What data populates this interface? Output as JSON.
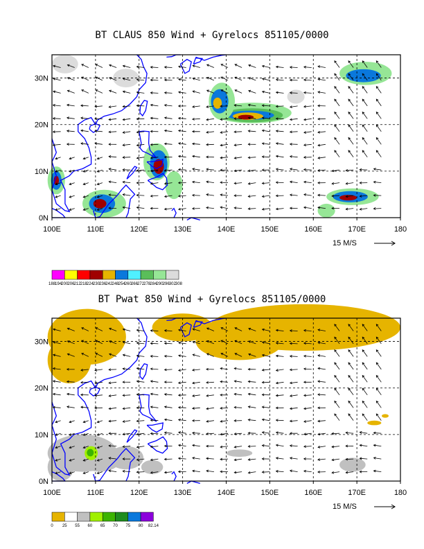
{
  "panels": [
    {
      "title": "BT CLAUS 850 Wind + Gyrelocs 851105/0000",
      "lon_labels": [
        "100E",
        "110E",
        "120E",
        "130E",
        "140E",
        "150E",
        "160E",
        "170E",
        "180"
      ],
      "lat_labels": [
        "0N",
        "10N",
        "20N",
        "30N"
      ],
      "ref_vector": "15 M/S",
      "colorbar": {
        "colors": [
          "#ff00ff",
          "#ffff00",
          "#ff0000",
          "#a00000",
          "#e6b400",
          "#0a78dc",
          "#50f0ff",
          "#5abe5a",
          "#96e696",
          "#dcdcdc"
        ],
        "labels": [
          "188",
          "194",
          "200",
          "206",
          "212",
          "218",
          "224",
          "230",
          "236",
          "242",
          "248",
          "254",
          "260",
          "266",
          "272",
          "278",
          "284",
          "290",
          "296",
          "302",
          "308"
        ]
      }
    },
    {
      "title": "BT Pwat 850 Wind + Gyrelocs 851105/0000",
      "lon_labels": [
        "100E",
        "110E",
        "120E",
        "130E",
        "140E",
        "150E",
        "160E",
        "170E",
        "180"
      ],
      "lat_labels": [
        "0N",
        "10N",
        "20N",
        "30N"
      ],
      "ref_vector": "15 M/S",
      "colorbar": {
        "colors": [
          "#e6b400",
          "#ffffff",
          "#c0c0c0",
          "#a0f000",
          "#3cb400",
          "#1e8c1e",
          "#0a78dc",
          "#8c00dc"
        ],
        "labels": [
          "0",
          "25",
          "55",
          "60",
          "65",
          "70",
          "75",
          "80",
          "82.14"
        ]
      }
    }
  ]
}
